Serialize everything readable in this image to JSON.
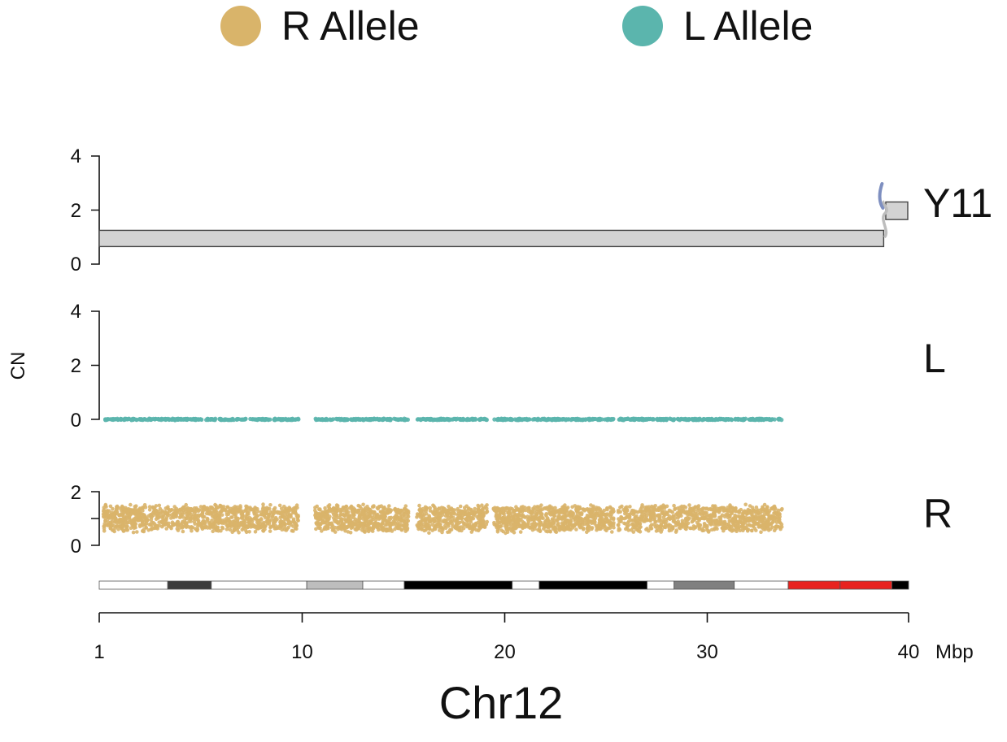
{
  "chart_data": {
    "type": "scatter",
    "xlabel": "Chr12",
    "x_unit": "Mbp",
    "xlim": [
      1,
      40
    ],
    "x_ticks": [
      1,
      10,
      20,
      30,
      40
    ],
    "ylabel": "CN",
    "legend": {
      "placement": "top-center",
      "entries": [
        {
          "name": "R Allele",
          "color": "#D9B46A"
        },
        {
          "name": "L Allele",
          "color": "#5BB5AD"
        }
      ]
    },
    "panels": [
      {
        "name": "Y11",
        "type": "segments",
        "ylim": [
          0,
          4
        ],
        "y_ticks": [
          0,
          2,
          4
        ],
        "segments": [
          {
            "x_start": 1,
            "x_end": 38.8,
            "cn_low": 0.65,
            "cn_high": 1.25
          },
          {
            "x_start": 38.9,
            "x_end": 41.0,
            "cn_low": 1.65,
            "cn_high": 2.3
          }
        ],
        "segment_fill": "#D3D3D3",
        "breakpoint_color": "#7E8FC0"
      },
      {
        "name": "L",
        "type": "scatter",
        "series": "L Allele",
        "ylim": [
          0,
          4
        ],
        "y_ticks": [
          0,
          2,
          4
        ],
        "x_range": [
          1.2,
          33.9
        ],
        "cn_center": 0.0,
        "cn_spread": 0.03,
        "gaps": [
          [
            10.6,
            11.4
          ],
          [
            15.9,
            16.3
          ],
          [
            19.7,
            20.0
          ],
          [
            25.8,
            26.0
          ]
        ],
        "n_points": 900
      },
      {
        "name": "R",
        "type": "scatter",
        "series": "R Allele",
        "ylim": [
          0,
          2
        ],
        "y_ticks": [
          0,
          1,
          2
        ],
        "x_range": [
          1.2,
          33.9
        ],
        "cn_center": 1.0,
        "cn_spread": 0.55,
        "gaps": [
          [
            10.6,
            11.4
          ],
          [
            15.9,
            16.3
          ],
          [
            19.7,
            20.0
          ],
          [
            25.8,
            26.0
          ]
        ],
        "n_points": 3400
      }
    ],
    "ideogram": [
      {
        "start": 1.0,
        "end": 4.3,
        "color": "#FFFFFF"
      },
      {
        "start": 4.3,
        "end": 6.4,
        "color": "#3C3C3C"
      },
      {
        "start": 6.4,
        "end": 11.0,
        "color": "#FFFFFF"
      },
      {
        "start": 11.0,
        "end": 13.7,
        "color": "#BDBDBD"
      },
      {
        "start": 13.7,
        "end": 15.7,
        "color": "#FFFFFF"
      },
      {
        "start": 15.7,
        "end": 20.9,
        "color": "#000000"
      },
      {
        "start": 20.9,
        "end": 22.2,
        "color": "#FFFFFF"
      },
      {
        "start": 22.2,
        "end": 27.4,
        "color": "#000000"
      },
      {
        "start": 27.4,
        "end": 28.7,
        "color": "#FFFFFF"
      },
      {
        "start": 28.7,
        "end": 31.6,
        "color": "#808080"
      },
      {
        "start": 31.6,
        "end": 34.2,
        "color": "#FFFFFF"
      },
      {
        "start": 34.2,
        "end": 36.7,
        "color": "#E8231F"
      },
      {
        "start": 36.7,
        "end": 39.2,
        "color": "#E8231F"
      },
      {
        "start": 39.2,
        "end": 40.0,
        "color": "#000000"
      }
    ]
  }
}
